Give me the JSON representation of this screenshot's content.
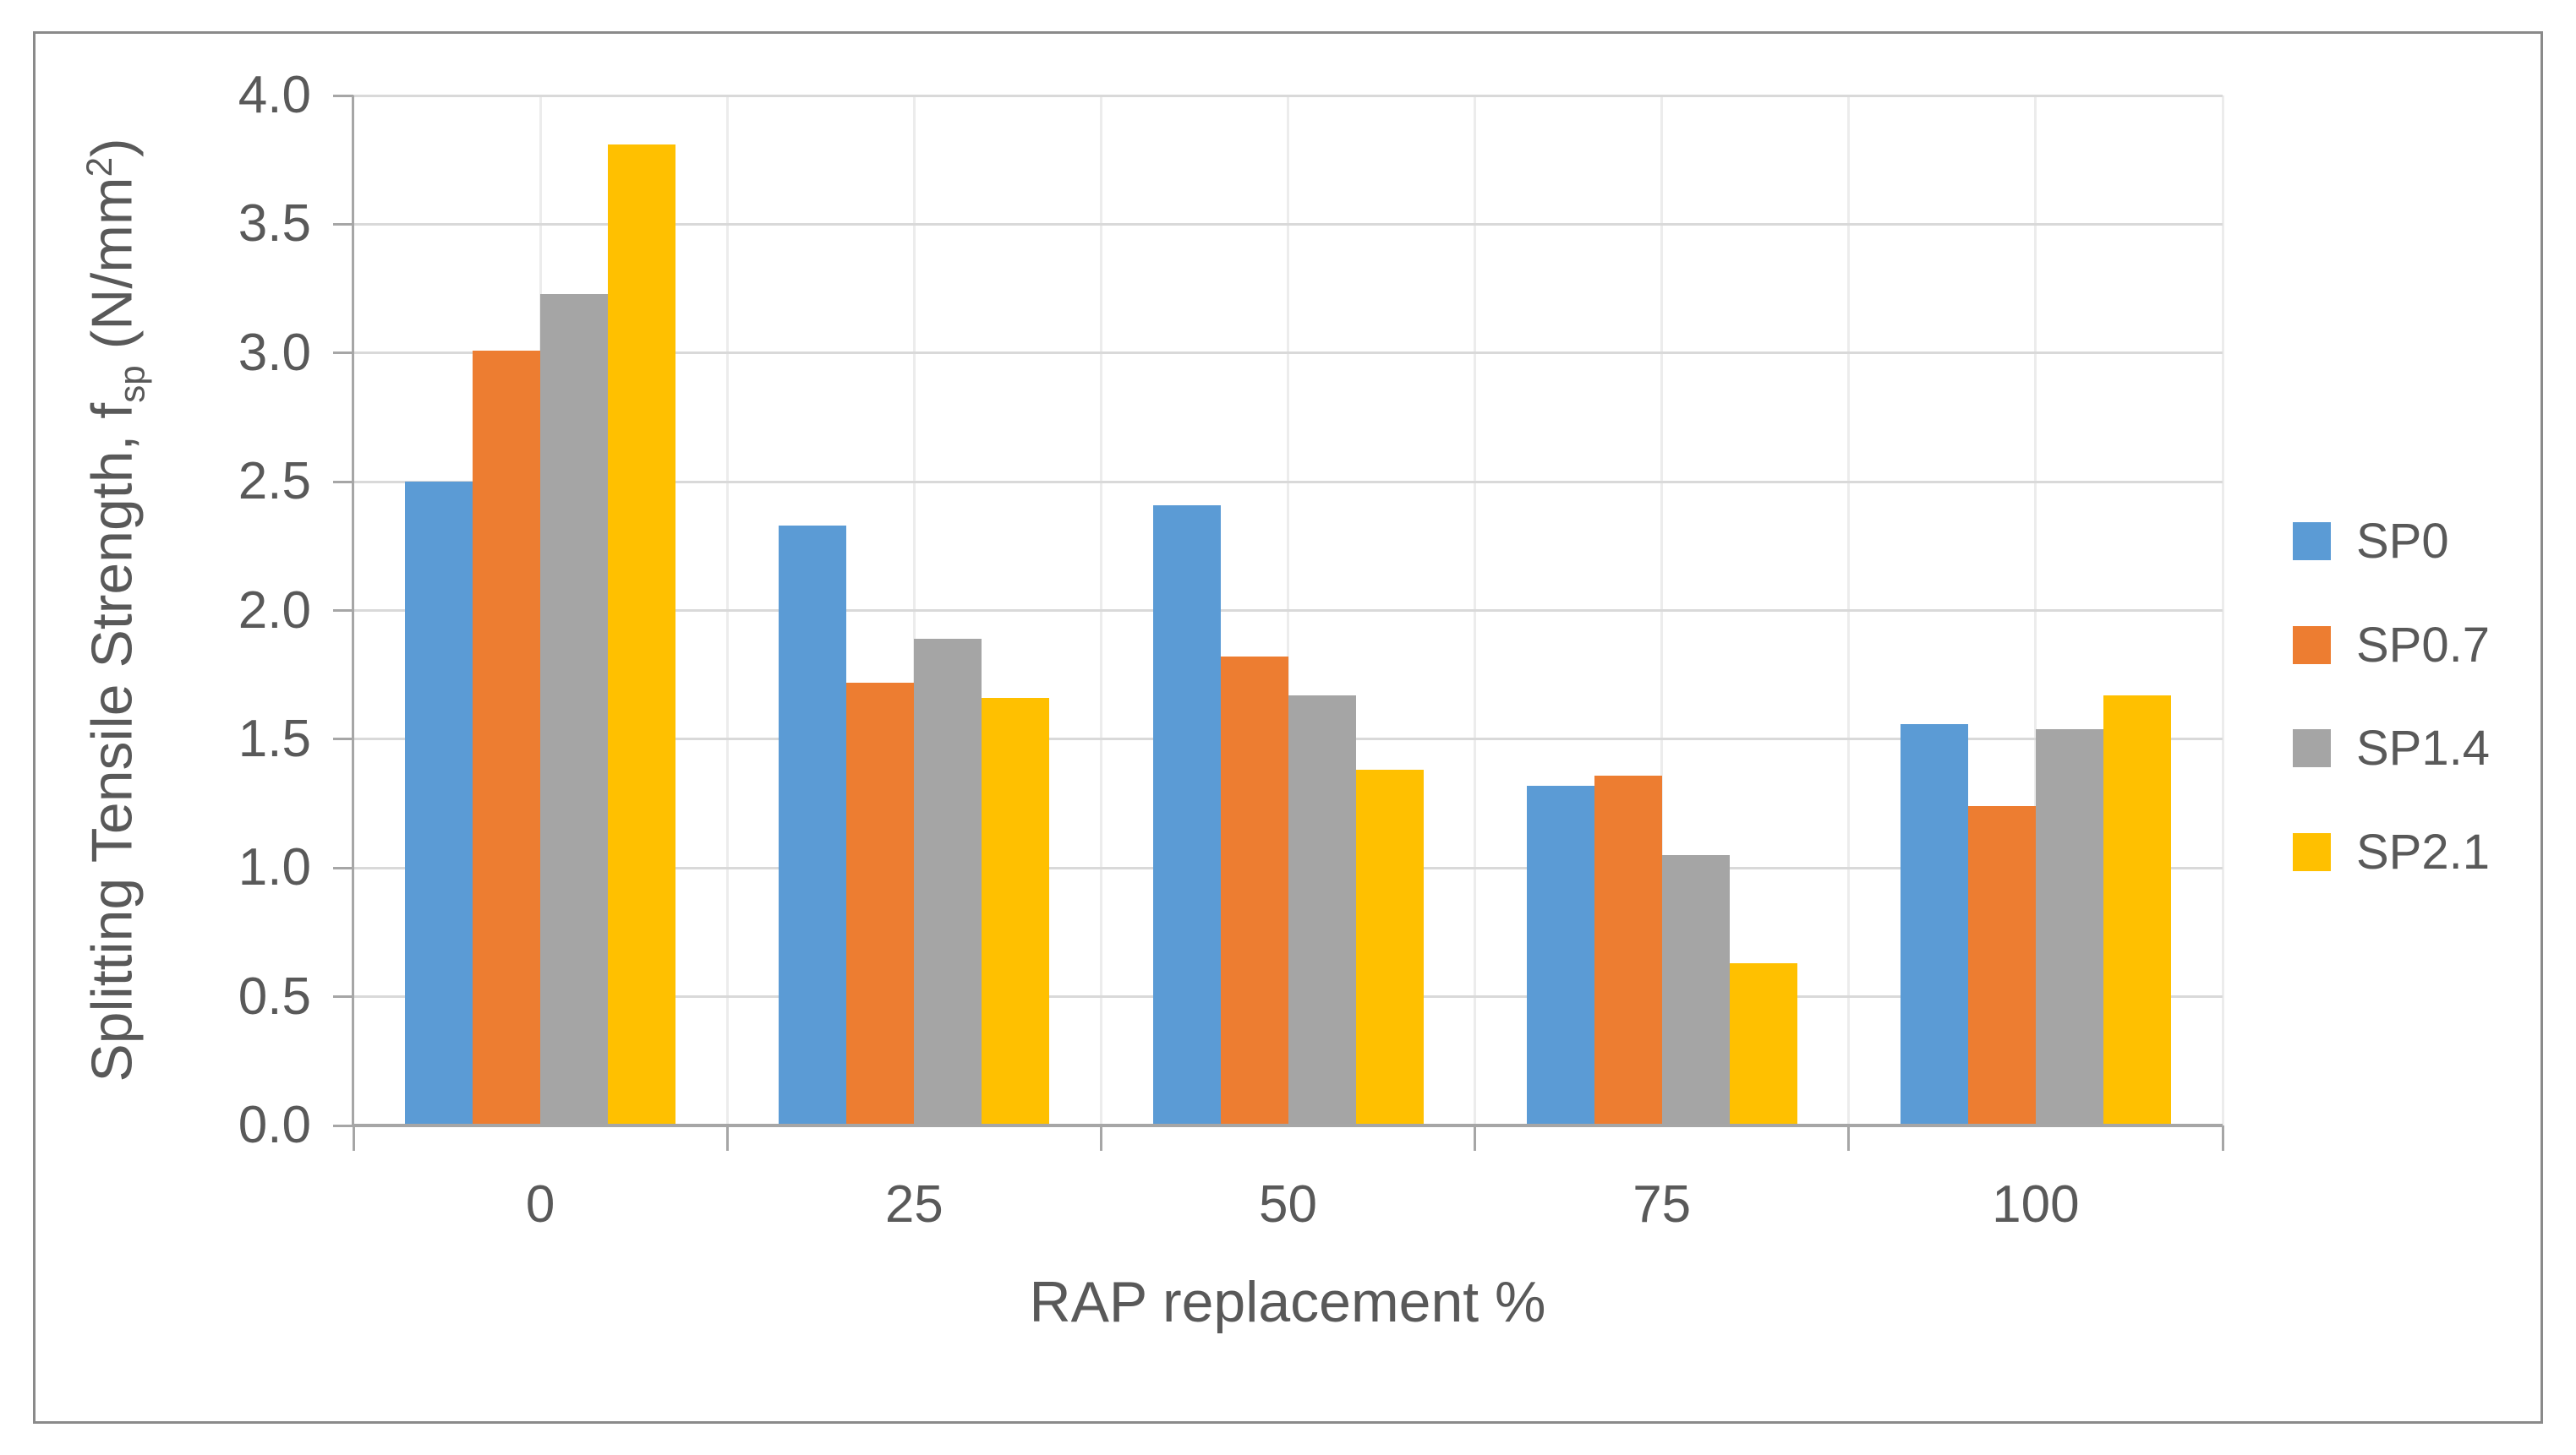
{
  "figure": {
    "background": "#FFFFFF",
    "border_color": "#8A8A8A"
  },
  "style": {
    "text_color": "#595959",
    "gridline_color": "#D9D9D9",
    "minor_gridline_color": "#ECECEC",
    "axis_line_color": "#A6A6A6"
  },
  "chart_data": {
    "type": "bar",
    "title": "",
    "xlabel": "RAP replacement %",
    "ylabel": "Splitting Tensile Strength, fsp (N/mm2)",
    "ylabel_parts": {
      "prefix": "Splitting Tensile Strength, f",
      "subscript": "sp",
      "middle": " (N/mm",
      "superscript": "2",
      "suffix": ")"
    },
    "categories": [
      "0",
      "25",
      "50",
      "75",
      "100"
    ],
    "series": [
      {
        "name": "SP0",
        "color": "#5B9BD5",
        "values": [
          2.5,
          2.33,
          2.41,
          1.32,
          1.56
        ]
      },
      {
        "name": "SP0.7",
        "color": "#ED7D31",
        "values": [
          3.01,
          1.72,
          1.82,
          1.36,
          1.24
        ]
      },
      {
        "name": "SP1.4",
        "color": "#A5A5A5",
        "values": [
          3.23,
          1.89,
          1.67,
          1.05,
          1.54
        ]
      },
      {
        "name": "SP2.1",
        "color": "#FFC000",
        "values": [
          3.81,
          1.66,
          1.38,
          0.63,
          1.67
        ]
      }
    ],
    "ylim": [
      0,
      4
    ],
    "ytick_step": 0.5,
    "ytick_labels": [
      "0.0",
      "0.5",
      "1.0",
      "1.5",
      "2.0",
      "2.5",
      "3.0",
      "3.5",
      "4.0"
    ],
    "grid": true,
    "legend_position": "right"
  }
}
